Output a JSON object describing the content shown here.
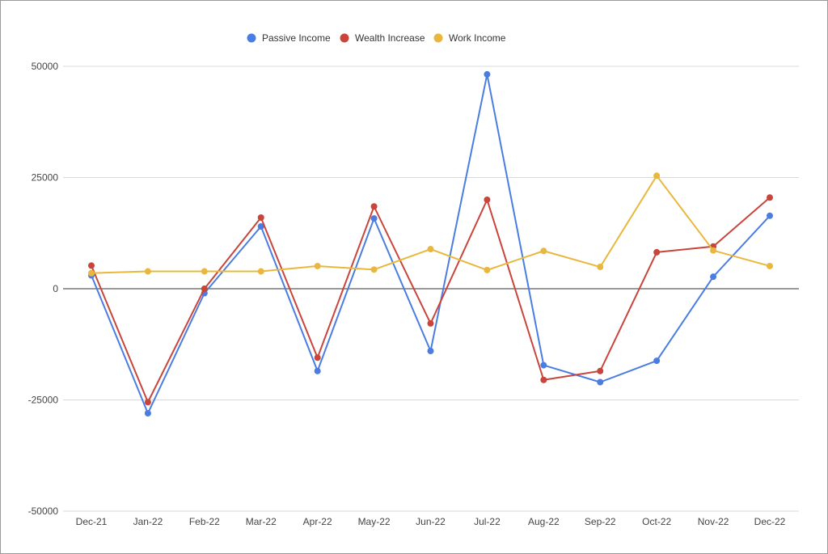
{
  "chart_data": {
    "type": "line",
    "title": "",
    "xlabel": "",
    "ylabel": "",
    "categories": [
      "Dec-21",
      "Jan-22",
      "Feb-22",
      "Mar-22",
      "Apr-22",
      "May-22",
      "Jun-22",
      "Jul-22",
      "Aug-22",
      "Sep-22",
      "Oct-22",
      "Nov-22",
      "Dec-22"
    ],
    "ylim": [
      -50000,
      50000
    ],
    "yticks": [
      50000,
      25000,
      0,
      -25000,
      -50000
    ],
    "grid": true,
    "legend_position": "top",
    "series": [
      {
        "name": "Passive Income",
        "color": "#4a7de2",
        "values": [
          3000,
          -28000,
          -1000,
          14000,
          -18500,
          15800,
          -14000,
          48200,
          -17200,
          -21000,
          -16200,
          2700,
          16400
        ]
      },
      {
        "name": "Wealth Increase",
        "color": "#c9453b",
        "values": [
          5200,
          -25500,
          0,
          16000,
          -15500,
          18500,
          -7800,
          20000,
          -20500,
          -18500,
          8200,
          9500,
          20500
        ]
      },
      {
        "name": "Work Income",
        "color": "#e9b73e",
        "values": [
          3500,
          3900,
          3900,
          3900,
          5100,
          4300,
          8900,
          4200,
          8500,
          4900,
          25400,
          8600,
          5100
        ]
      }
    ]
  }
}
